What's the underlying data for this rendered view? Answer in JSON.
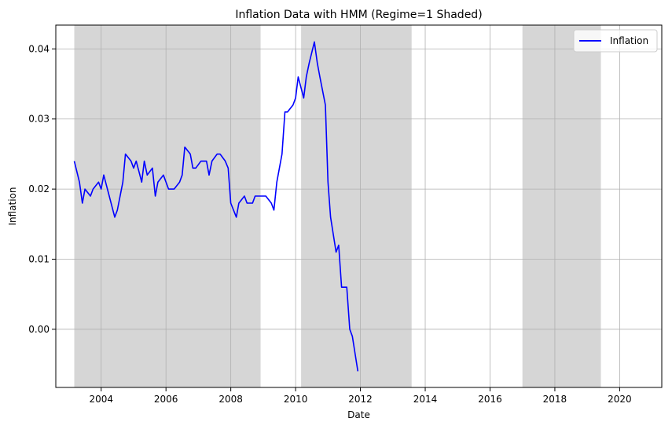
{
  "chart_data": {
    "type": "line",
    "title": "Inflation Data with HMM (Regime=1 Shaded)",
    "xlabel": "Date",
    "ylabel": "Inflation",
    "xlim": [
      2002.6,
      2021.3
    ],
    "ylim": [
      -0.0083,
      0.0434
    ],
    "x_ticks": [
      2004,
      2006,
      2008,
      2010,
      2012,
      2014,
      2016,
      2018,
      2020
    ],
    "y_ticks": [
      0.0,
      0.01,
      0.02,
      0.03,
      0.04
    ],
    "y_tick_labels": [
      "0.00",
      "0.01",
      "0.02",
      "0.03",
      "0.04"
    ],
    "grid": true,
    "legend_position": "top-right",
    "shaded_regions": [
      {
        "start": 2003.17,
        "end": 2008.92
      },
      {
        "start": 2010.17,
        "end": 2013.58
      },
      {
        "start": 2017.0,
        "end": 2019.42
      }
    ],
    "series": [
      {
        "name": "Inflation",
        "color": "#0000ff",
        "points": [
          [
            2003.17,
            0.024
          ],
          [
            2003.33,
            0.021
          ],
          [
            2003.42,
            0.018
          ],
          [
            2003.5,
            0.02
          ],
          [
            2003.67,
            0.019
          ],
          [
            2003.75,
            0.02
          ],
          [
            2003.92,
            0.021
          ],
          [
            2004.0,
            0.02
          ],
          [
            2004.08,
            0.022
          ],
          [
            2004.25,
            0.019
          ],
          [
            2004.42,
            0.016
          ],
          [
            2004.5,
            0.017
          ],
          [
            2004.67,
            0.021
          ],
          [
            2004.75,
            0.025
          ],
          [
            2004.92,
            0.024
          ],
          [
            2005.0,
            0.023
          ],
          [
            2005.08,
            0.024
          ],
          [
            2005.25,
            0.021
          ],
          [
            2005.33,
            0.024
          ],
          [
            2005.42,
            0.022
          ],
          [
            2005.58,
            0.023
          ],
          [
            2005.67,
            0.019
          ],
          [
            2005.75,
            0.021
          ],
          [
            2005.92,
            0.022
          ],
          [
            2006.0,
            0.021
          ],
          [
            2006.08,
            0.02
          ],
          [
            2006.25,
            0.02
          ],
          [
            2006.42,
            0.021
          ],
          [
            2006.5,
            0.022
          ],
          [
            2006.58,
            0.026
          ],
          [
            2006.75,
            0.025
          ],
          [
            2006.83,
            0.023
          ],
          [
            2006.92,
            0.023
          ],
          [
            2007.08,
            0.024
          ],
          [
            2007.25,
            0.024
          ],
          [
            2007.33,
            0.022
          ],
          [
            2007.42,
            0.024
          ],
          [
            2007.58,
            0.025
          ],
          [
            2007.67,
            0.025
          ],
          [
            2007.83,
            0.024
          ],
          [
            2007.92,
            0.023
          ],
          [
            2008.0,
            0.018
          ],
          [
            2008.17,
            0.016
          ],
          [
            2008.25,
            0.018
          ],
          [
            2008.42,
            0.019
          ],
          [
            2008.5,
            0.018
          ],
          [
            2008.67,
            0.018
          ],
          [
            2008.75,
            0.019
          ],
          [
            2008.92,
            0.019
          ],
          [
            2009.08,
            0.019
          ],
          [
            2009.25,
            0.018
          ],
          [
            2009.33,
            0.017
          ],
          [
            2009.42,
            0.021
          ],
          [
            2009.58,
            0.025
          ],
          [
            2009.67,
            0.031
          ],
          [
            2009.75,
            0.031
          ],
          [
            2009.92,
            0.032
          ],
          [
            2010.0,
            0.033
          ],
          [
            2010.08,
            0.036
          ],
          [
            2010.25,
            0.033
          ],
          [
            2010.33,
            0.036
          ],
          [
            2010.42,
            0.038
          ],
          [
            2010.58,
            0.041
          ],
          [
            2010.67,
            0.038
          ],
          [
            2010.75,
            0.036
          ],
          [
            2010.92,
            0.032
          ],
          [
            2011.0,
            0.021
          ],
          [
            2011.08,
            0.016
          ],
          [
            2011.25,
            0.011
          ],
          [
            2011.33,
            0.012
          ],
          [
            2011.42,
            0.006
          ],
          [
            2011.58,
            0.006
          ],
          [
            2011.67,
            0.0
          ],
          [
            2011.75,
            -0.001
          ],
          [
            2011.92,
            -0.006
          ]
        ]
      }
    ]
  }
}
